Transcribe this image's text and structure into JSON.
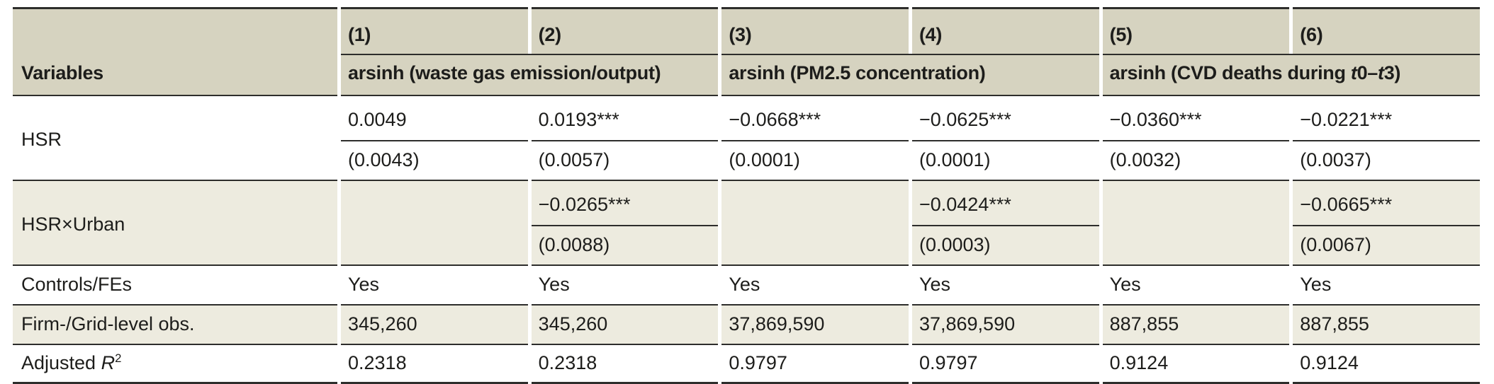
{
  "header": {
    "variables_label": "Variables",
    "col_numbers": [
      "(1)",
      "(2)",
      "(3)",
      "(4)",
      "(5)",
      "(6)"
    ],
    "group1": "arsinh (waste gas emission/output)",
    "group2": "arsinh (PM2.5 concentration)",
    "group3": {
      "p0": "arsinh (CVD deaths during ",
      "t0": "t",
      "p1": "0–",
      "t1": "t",
      "p2": "3)"
    }
  },
  "rows": {
    "hsr": {
      "label": "HSR",
      "coefs": [
        "0.0049",
        "0.0193***",
        "−0.0668***",
        "−0.0625***",
        "−0.0360***",
        "−0.0221***"
      ],
      "ses": [
        "(0.0043)",
        "(0.0057)",
        "(0.0001)",
        "(0.0001)",
        "(0.0032)",
        "(0.0037)"
      ]
    },
    "hsr_urban": {
      "label": "HSR×Urban",
      "coefs": [
        "",
        "−0.0265***",
        "",
        "−0.0424***",
        "",
        "−0.0665***"
      ],
      "ses": [
        "",
        "(0.0088)",
        "",
        "(0.0003)",
        "",
        "(0.0067)"
      ]
    },
    "controls": {
      "label": "Controls/FEs",
      "values": [
        "Yes",
        "Yes",
        "Yes",
        "Yes",
        "Yes",
        "Yes"
      ]
    },
    "obs": {
      "label": "Firm-/Grid-level obs.",
      "values": [
        "345,260",
        "345,260",
        "37,869,590",
        "37,869,590",
        "887,855",
        "887,855"
      ]
    },
    "adj_r2": {
      "label_prefix": "Adjusted ",
      "label_r": "R",
      "label_sup": "2",
      "values": [
        "0.2318",
        "0.2318",
        "0.9797",
        "0.9797",
        "0.9124",
        "0.9124"
      ]
    }
  },
  "colors": {
    "header_bg": "#d6d3c0",
    "stripe_bg": "#edebdf",
    "rule": "#2d2d2b",
    "text": "#1d1d1b"
  }
}
